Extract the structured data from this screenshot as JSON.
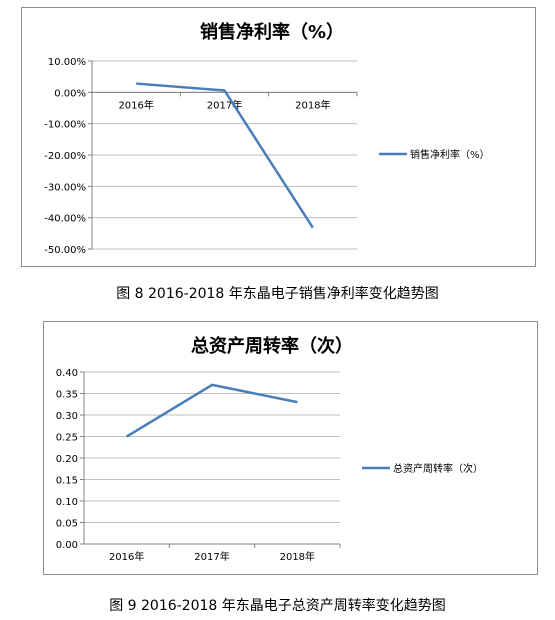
{
  "chart_data": [
    {
      "type": "line",
      "title": "销售净利率（%）",
      "categories": [
        "2016年",
        "2017年",
        "2018年"
      ],
      "series": [
        {
          "name": "销售净利率（%）",
          "values": [
            2.8,
            0.6,
            -43.2
          ],
          "color": "#4a7ebb"
        }
      ],
      "yticks": [
        "10.00%",
        "0.00%",
        "-10.00%",
        "-20.00%",
        "-30.00%",
        "-40.00%",
        "-50.00%"
      ],
      "ylim": [
        -50,
        10
      ],
      "grid": true,
      "legend_position": "right",
      "category_axis_at_zero": true
    },
    {
      "type": "line",
      "title": "总资产周转率（次）",
      "categories": [
        "2016年",
        "2017年",
        "2018年"
      ],
      "series": [
        {
          "name": "总资产周转率（次）",
          "values": [
            0.25,
            0.37,
            0.33
          ],
          "color": "#4a7ebb"
        }
      ],
      "yticks": [
        "0.40",
        "0.35",
        "0.30",
        "0.25",
        "0.20",
        "0.15",
        "0.10",
        "0.05",
        "0.00"
      ],
      "ylim": [
        0,
        0.4
      ],
      "grid": true,
      "legend_position": "right",
      "category_axis_at_zero": true
    }
  ],
  "captions": {
    "fig8": "图 8 2016-2018 年东晶电子销售净利率变化趋势图",
    "fig9": "图 9 2016-2018 年东晶电子总资产周转率变化趋势图"
  }
}
